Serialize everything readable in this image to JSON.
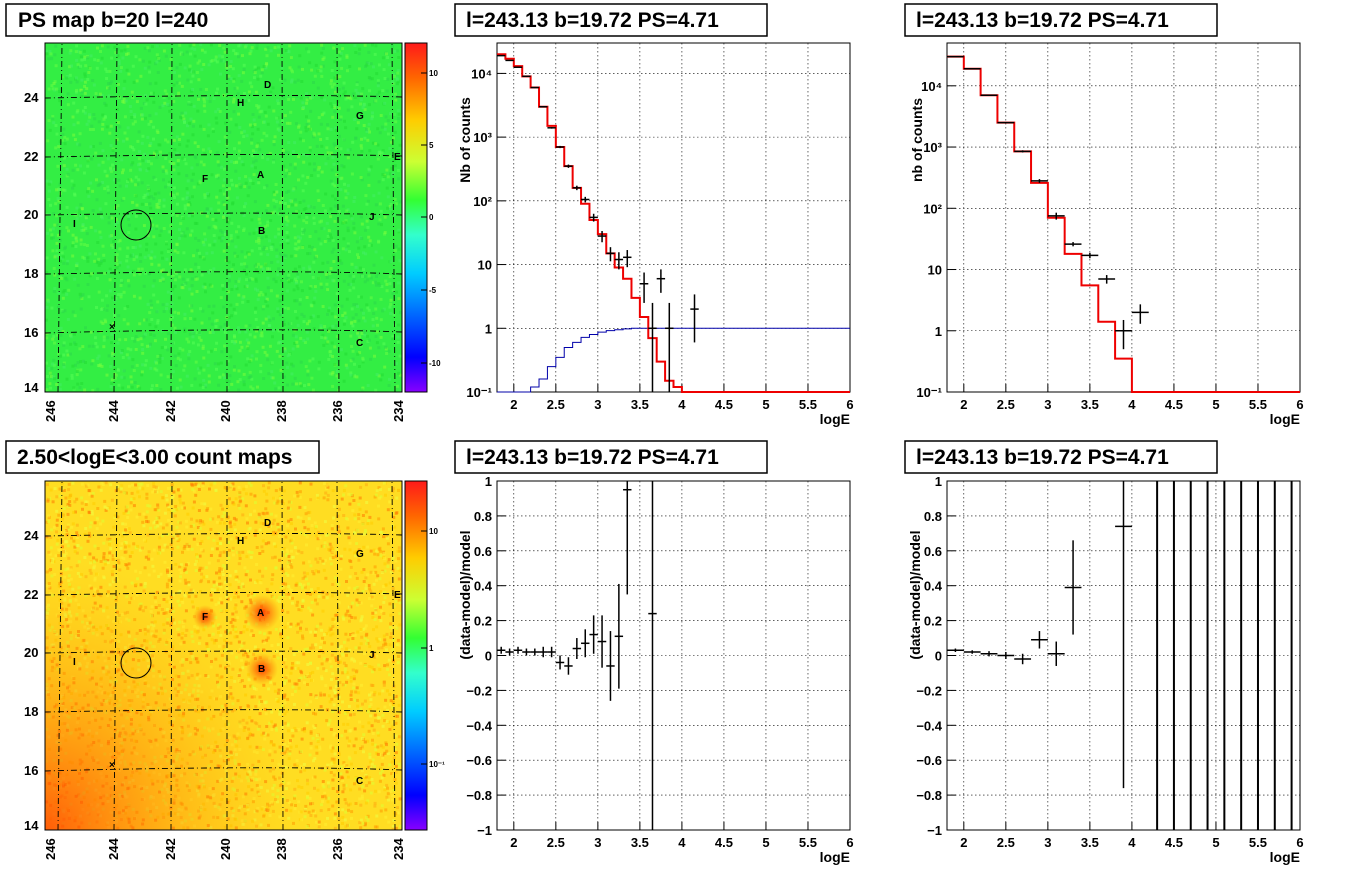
{
  "panels": {
    "ps_map": {
      "title": "PS map b=20 l=240",
      "x_ticks": [
        "246",
        "244",
        "242",
        "240",
        "238",
        "236",
        "234"
      ],
      "y_ticks": [
        "14",
        "16",
        "18",
        "20",
        "22",
        "24"
      ],
      "colorbar_ticks": [
        "10",
        "5",
        "0",
        "-5",
        "-10"
      ]
    },
    "count_map": {
      "title": "2.50<logE<3.00 count maps",
      "x_ticks": [
        "246",
        "244",
        "242",
        "240",
        "238",
        "236",
        "234"
      ],
      "y_ticks": [
        "14",
        "16",
        "18",
        "20",
        "22",
        "24"
      ],
      "colorbar_ticks": [
        "10",
        "1",
        "10⁻¹"
      ]
    },
    "spectra": [
      {
        "title": "l=243.13 b=19.72 PS=4.71",
        "ylabel": "Nb of counts",
        "xlabel": "logE"
      },
      {
        "title": "l=243.13 b=19.72 PS=4.71",
        "ylabel": "nb of counts",
        "xlabel": "logE"
      }
    ],
    "residuals": [
      {
        "title": "l=243.13 b=19.72 PS=4.71",
        "ylabel": "(data-model)/model",
        "xlabel": "logE"
      },
      {
        "title": "l=243.13 b=19.72 PS=4.71",
        "ylabel": "(data-model)/model",
        "xlabel": "logE"
      }
    ]
  },
  "sources": [
    "A",
    "B",
    "C",
    "D",
    "E",
    "F",
    "G",
    "H",
    "I",
    "J"
  ],
  "colors": {
    "model": "#ee0000",
    "acceptance": "#0000aa",
    "data": "#000000"
  },
  "chart_data": [
    {
      "type": "heatmap",
      "title": "PS map b=20 l=240",
      "xlabel": "",
      "ylabel": "",
      "xlim": [
        246,
        234
      ],
      "ylim": [
        14,
        25.8
      ],
      "zlim": [
        -12,
        12
      ],
      "source_labels": [
        "A",
        "B",
        "C",
        "D",
        "E",
        "F",
        "G",
        "H",
        "I",
        "J"
      ]
    },
    {
      "type": "line",
      "title": "l=243.13 b=19.72 PS=4.71",
      "xlabel": "logE",
      "ylabel": "Nb of counts",
      "xlim": [
        1.8,
        6
      ],
      "ylim": [
        0.1,
        30000
      ],
      "yscale": "log",
      "x_ticks": [
        "2",
        "2.5",
        "3",
        "3.5",
        "4",
        "4.5",
        "5",
        "5.5",
        "6"
      ],
      "y_ticks": [
        "10⁻¹",
        "1",
        "10",
        "10²",
        "10³",
        "10⁴"
      ],
      "series": [
        {
          "edges": [
            1.8,
            1.9,
            2.0,
            2.1,
            2.2,
            2.3,
            2.4,
            2.5,
            2.6,
            2.7,
            2.8,
            2.9,
            3.0,
            3.1,
            3.2,
            3.3,
            3.4,
            3.5,
            3.6,
            3.7,
            3.8,
            3.9,
            4.0,
            4.1,
            6.0
          ],
          "values": [
            20000,
            17000,
            13000,
            9000,
            6000,
            3000,
            1500,
            700,
            350,
            160,
            90,
            50,
            30,
            15,
            9,
            6,
            3,
            1.5,
            0.7,
            0.3,
            0.15,
            0.12,
            0.1,
            0.1
          ]
        },
        {
          "edges": [
            1.8,
            1.9,
            2.0,
            2.1,
            2.2,
            2.3,
            2.4,
            2.5,
            2.6,
            2.7,
            2.8,
            2.9,
            3.0,
            3.1,
            3.2,
            3.3,
            3.4,
            3.5,
            3.6,
            3.7,
            3.8,
            3.9,
            6.0
          ],
          "values": [
            0.1,
            0.1,
            0.1,
            0.1,
            0.12,
            0.16,
            0.25,
            0.35,
            0.5,
            0.6,
            0.72,
            0.8,
            0.87,
            0.92,
            0.95,
            0.98,
            1.0,
            1.0,
            1.0,
            1.0,
            1.0,
            1.0
          ]
        },
        {
          "points": [
            [
              1.85,
              19000
            ],
            [
              1.95,
              16000
            ],
            [
              2.05,
              12500
            ],
            [
              2.15,
              9000
            ],
            [
              2.25,
              6000
            ],
            [
              2.35,
              3000
            ],
            [
              2.45,
              1400
            ],
            [
              2.55,
              700
            ],
            [
              2.65,
              350
            ],
            [
              2.75,
              160
            ],
            [
              2.85,
              105
            ],
            [
              2.95,
              55
            ],
            [
              3.05,
              28
            ],
            [
              3.15,
              15
            ],
            [
              3.25,
              12
            ],
            [
              3.35,
              13
            ],
            [
              3.55,
              5
            ],
            [
              3.65,
              1
            ],
            [
              3.75,
              6
            ],
            [
              3.85,
              1
            ],
            [
              4.15,
              2
            ]
          ],
          "err": [
            [
              1.85,
              0.01
            ],
            [
              1.95,
              0.01
            ],
            [
              2.05,
              0.01
            ],
            [
              2.15,
              0.01
            ],
            [
              2.25,
              0.02
            ],
            [
              2.35,
              0.02
            ],
            [
              2.45,
              0.03
            ],
            [
              2.55,
              0.04
            ],
            [
              2.65,
              0.06
            ],
            [
              2.75,
              0.08
            ],
            [
              2.85,
              0.1
            ],
            [
              2.95,
              0.14
            ],
            [
              3.05,
              0.2
            ],
            [
              3.15,
              0.25
            ],
            [
              3.25,
              0.3
            ],
            [
              3.35,
              0.3
            ],
            [
              3.55,
              0.5
            ],
            [
              3.65,
              1.5
            ],
            [
              3.75,
              0.4
            ],
            [
              3.85,
              1.5
            ],
            [
              4.15,
              0.7
            ]
          ]
        }
      ]
    },
    {
      "type": "line",
      "title": "l=243.13 b=19.72 PS=4.71",
      "xlabel": "logE",
      "ylabel": "nb of counts",
      "xlim": [
        1.8,
        6
      ],
      "ylim": [
        0.1,
        50000
      ],
      "yscale": "log",
      "x_ticks": [
        "2",
        "2.5",
        "3",
        "3.5",
        "4",
        "4.5",
        "5",
        "5.5",
        "6"
      ],
      "y_ticks": [
        "10⁻¹",
        "1",
        "10",
        "10²",
        "10³",
        "10⁴"
      ],
      "series": [
        {
          "edges": [
            1.8,
            2.0,
            2.2,
            2.4,
            2.6,
            2.8,
            3.0,
            3.2,
            3.4,
            3.6,
            3.8,
            4.0,
            4.2,
            6.0
          ],
          "values": [
            30000,
            19000,
            7000,
            2500,
            850,
            260,
            70,
            18,
            5.5,
            1.4,
            0.35,
            0.1,
            0.1
          ]
        },
        {
          "points": [
            [
              1.9,
              30000
            ],
            [
              2.1,
              19000
            ],
            [
              2.3,
              7000
            ],
            [
              2.5,
              2500
            ],
            [
              2.7,
              850
            ],
            [
              2.9,
              280
            ],
            [
              3.1,
              75
            ],
            [
              3.3,
              26
            ],
            [
              3.5,
              17
            ],
            [
              3.7,
              7
            ],
            [
              3.9,
              1
            ],
            [
              4.1,
              2
            ]
          ],
          "err": [
            [
              1.9,
              0.005
            ],
            [
              2.1,
              0.01
            ],
            [
              2.3,
              0.015
            ],
            [
              2.5,
              0.02
            ],
            [
              2.7,
              0.04
            ],
            [
              2.9,
              0.07
            ],
            [
              3.1,
              0.13
            ],
            [
              3.3,
              0.08
            ],
            [
              3.5,
              0.1
            ],
            [
              3.7,
              0.16
            ],
            [
              3.9,
              0.5
            ],
            [
              4.1,
              0.35
            ]
          ]
        }
      ]
    },
    {
      "type": "heatmap",
      "title": "2.50<logE<3.00 count maps",
      "xlabel": "",
      "ylabel": "",
      "xlim": [
        246,
        234
      ],
      "ylim": [
        14,
        25.8
      ],
      "zscale": "log",
      "source_labels": [
        "A",
        "B",
        "C",
        "D",
        "E",
        "F",
        "G",
        "H",
        "I",
        "J"
      ]
    },
    {
      "type": "scatter",
      "title": "l=243.13 b=19.72 PS=4.71",
      "xlabel": "logE",
      "ylabel": "(data-model)/model",
      "xlim": [
        1.8,
        6
      ],
      "ylim": [
        -1,
        1
      ],
      "x_ticks": [
        "2",
        "2.5",
        "3",
        "3.5",
        "4",
        "4.5",
        "5",
        "5.5",
        "6"
      ],
      "y_ticks": [
        "−1",
        "−0.8",
        "−0.6",
        "−0.4",
        "−0.2",
        "0",
        "0.2",
        "0.4",
        "0.6",
        "0.8",
        "1"
      ],
      "points": [
        [
          1.85,
          0.03
        ],
        [
          1.95,
          0.02
        ],
        [
          2.05,
          0.03
        ],
        [
          2.15,
          0.02
        ],
        [
          2.25,
          0.02
        ],
        [
          2.35,
          0.02
        ],
        [
          2.45,
          0.02
        ],
        [
          2.55,
          -0.04
        ],
        [
          2.65,
          -0.06
        ],
        [
          2.75,
          0.04
        ],
        [
          2.85,
          0.07
        ],
        [
          2.95,
          0.12
        ],
        [
          3.05,
          0.08
        ],
        [
          3.15,
          -0.06
        ],
        [
          3.25,
          0.11
        ],
        [
          3.35,
          0.95
        ],
        [
          3.65,
          0.24
        ]
      ],
      "err": [
        0.02,
        0.02,
        0.02,
        0.02,
        0.02,
        0.03,
        0.03,
        0.04,
        0.05,
        0.06,
        0.08,
        0.11,
        0.15,
        0.2,
        0.3,
        0.6,
        1.5
      ]
    },
    {
      "type": "scatter",
      "title": "l=243.13 b=19.72 PS=4.71",
      "xlabel": "logE",
      "ylabel": "(data-model)/model",
      "xlim": [
        1.8,
        6
      ],
      "ylim": [
        -1,
        1
      ],
      "x_ticks": [
        "2",
        "2.5",
        "3",
        "3.5",
        "4",
        "4.5",
        "5",
        "5.5",
        "6"
      ],
      "y_ticks": [
        "−1",
        "−0.8",
        "−0.6",
        "−0.4",
        "−0.2",
        "0",
        "0.2",
        "0.4",
        "0.6",
        "0.8",
        "1"
      ],
      "points": [
        [
          1.9,
          0.03
        ],
        [
          2.1,
          0.02
        ],
        [
          2.3,
          0.01
        ],
        [
          2.5,
          0.0
        ],
        [
          2.7,
          -0.02
        ],
        [
          2.9,
          0.09
        ],
        [
          3.1,
          0.01
        ],
        [
          3.3,
          0.39
        ],
        [
          3.9,
          0.74
        ]
      ],
      "err": [
        0.01,
        0.01,
        0.015,
        0.02,
        0.03,
        0.05,
        0.07,
        0.27,
        1.5
      ],
      "vertical_lines_x": [
        4.3,
        4.5,
        4.7,
        4.9,
        5.1,
        5.3,
        5.5,
        5.7,
        5.9
      ]
    }
  ]
}
